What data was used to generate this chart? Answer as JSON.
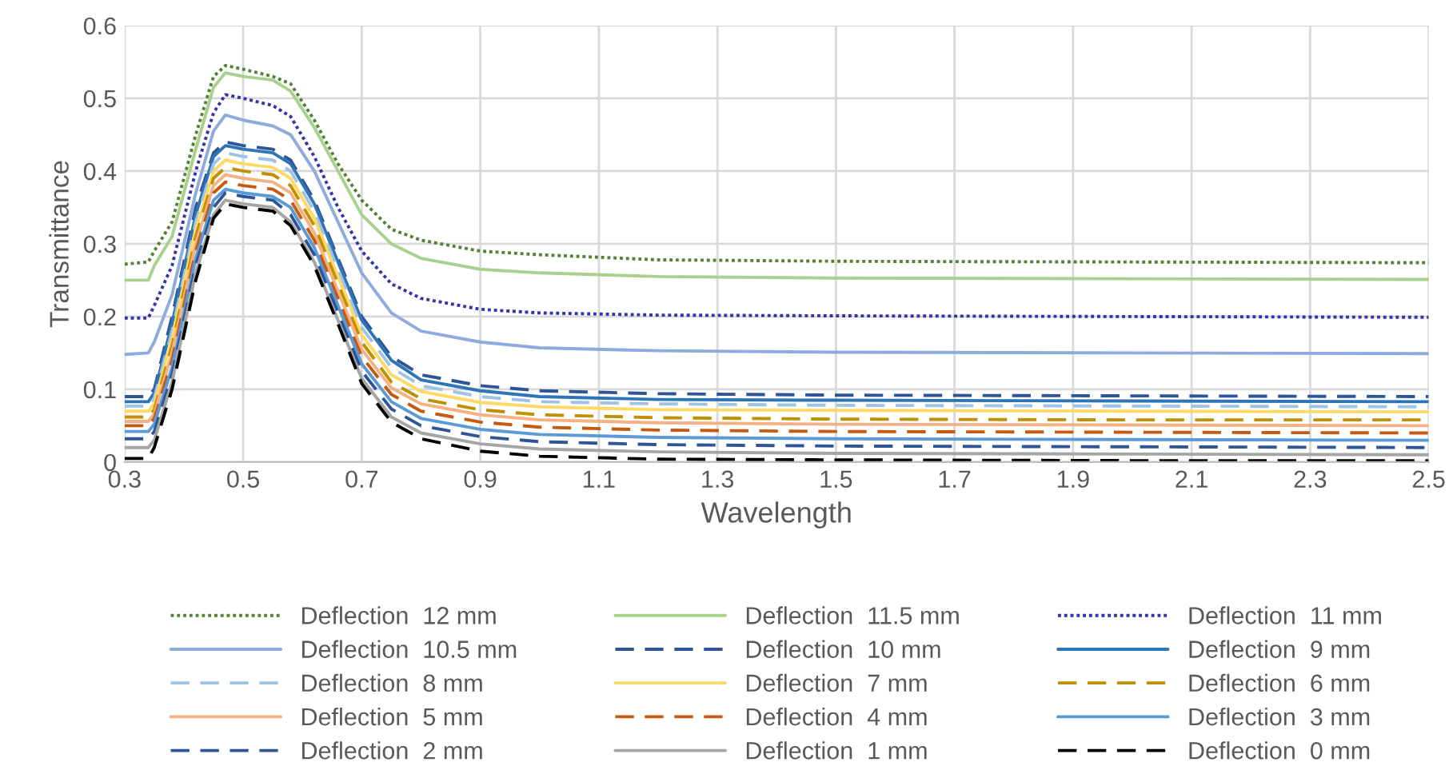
{
  "chart_data": {
    "type": "line",
    "xlabel": "Wavelength",
    "ylabel": "Transmittance",
    "x": [
      0.3,
      0.34,
      0.35,
      0.38,
      0.42,
      0.45,
      0.47,
      0.5,
      0.55,
      0.58,
      0.62,
      0.66,
      0.7,
      0.75,
      0.8,
      0.9,
      1.0,
      1.2,
      1.5,
      2.0,
      2.5
    ],
    "xlim": [
      0.3,
      2.5
    ],
    "xticks": [
      {
        "value": 0.3,
        "label": "0.3"
      },
      {
        "value": 0.5,
        "label": "0.5"
      },
      {
        "value": 0.7,
        "label": "0.7"
      },
      {
        "value": 0.9,
        "label": "0.9"
      },
      {
        "value": 1.1,
        "label": "1.1"
      },
      {
        "value": 1.3,
        "label": "1.3"
      },
      {
        "value": 1.5,
        "label": "1.5"
      },
      {
        "value": 1.7,
        "label": "1.7"
      },
      {
        "value": 1.9,
        "label": "1.9"
      },
      {
        "value": 2.1,
        "label": "2.1"
      },
      {
        "value": 2.3,
        "label": "2.3"
      },
      {
        "value": 2.5,
        "label": "2.5"
      }
    ],
    "ylim": [
      0,
      0.6
    ],
    "yticks": [
      0,
      0.1,
      0.2,
      0.3,
      0.4,
      0.5,
      0.6
    ],
    "grid": true,
    "legend": "bottom",
    "marker": "none",
    "series": [
      {
        "name": "Deflection  12 mm",
        "color": "#548235",
        "line_style": "dotted",
        "values": [
          0.272,
          0.275,
          0.29,
          0.33,
          0.45,
          0.53,
          0.545,
          0.54,
          0.53,
          0.52,
          0.47,
          0.41,
          0.36,
          0.32,
          0.305,
          0.29,
          0.285,
          0.278,
          0.276,
          0.275,
          0.274
        ]
      },
      {
        "name": "Deflection  11.5 mm",
        "color": "#a9d18e",
        "line_style": "solid",
        "values": [
          0.25,
          0.25,
          0.27,
          0.31,
          0.43,
          0.515,
          0.535,
          0.53,
          0.525,
          0.51,
          0.46,
          0.4,
          0.34,
          0.3,
          0.28,
          0.265,
          0.26,
          0.255,
          0.253,
          0.252,
          0.251
        ]
      },
      {
        "name": "Deflection  11 mm",
        "color": "#3333aa",
        "line_style": "dotted",
        "values": [
          0.198,
          0.198,
          0.215,
          0.27,
          0.4,
          0.48,
          0.505,
          0.5,
          0.49,
          0.475,
          0.42,
          0.35,
          0.29,
          0.245,
          0.225,
          0.21,
          0.205,
          0.202,
          0.201,
          0.2,
          0.199
        ]
      },
      {
        "name": "Deflection  10.5 mm",
        "color": "#8faadc",
        "line_style": "solid",
        "values": [
          0.148,
          0.15,
          0.165,
          0.23,
          0.37,
          0.455,
          0.477,
          0.47,
          0.462,
          0.45,
          0.4,
          0.33,
          0.26,
          0.205,
          0.18,
          0.165,
          0.157,
          0.153,
          0.151,
          0.15,
          0.149
        ]
      },
      {
        "name": "Deflection  10 mm",
        "color": "#2f5597",
        "line_style": "dashed",
        "values": [
          0.09,
          0.09,
          0.1,
          0.2,
          0.35,
          0.425,
          0.44,
          0.435,
          0.43,
          0.415,
          0.36,
          0.28,
          0.2,
          0.145,
          0.12,
          0.105,
          0.098,
          0.094,
          0.092,
          0.091,
          0.09
        ]
      },
      {
        "name": "Deflection  9 mm",
        "color": "#2e75b6",
        "line_style": "solid",
        "values": [
          0.083,
          0.083,
          0.095,
          0.19,
          0.34,
          0.42,
          0.435,
          0.43,
          0.425,
          0.41,
          0.355,
          0.275,
          0.195,
          0.14,
          0.113,
          0.098,
          0.09,
          0.086,
          0.085,
          0.084,
          0.083
        ]
      },
      {
        "name": "Deflection  8 mm",
        "color": "#9dc3e6",
        "line_style": "dashed",
        "values": [
          0.077,
          0.077,
          0.088,
          0.18,
          0.33,
          0.41,
          0.425,
          0.42,
          0.415,
          0.4,
          0.345,
          0.265,
          0.185,
          0.13,
          0.105,
          0.09,
          0.083,
          0.08,
          0.078,
          0.077,
          0.076
        ]
      },
      {
        "name": "Deflection  7 mm",
        "color": "#ffd966",
        "line_style": "solid",
        "values": [
          0.07,
          0.07,
          0.08,
          0.17,
          0.32,
          0.4,
          0.415,
          0.41,
          0.405,
          0.39,
          0.335,
          0.255,
          0.175,
          0.12,
          0.097,
          0.082,
          0.076,
          0.072,
          0.071,
          0.07,
          0.069
        ]
      },
      {
        "name": "Deflection  6 mm",
        "color": "#bf9000",
        "line_style": "dashed",
        "values": [
          0.062,
          0.062,
          0.072,
          0.16,
          0.31,
          0.39,
          0.405,
          0.4,
          0.395,
          0.38,
          0.325,
          0.245,
          0.165,
          0.11,
          0.087,
          0.072,
          0.065,
          0.061,
          0.059,
          0.058,
          0.058
        ]
      },
      {
        "name": "Deflection  5 mm",
        "color": "#f4b183",
        "line_style": "solid",
        "values": [
          0.056,
          0.056,
          0.066,
          0.15,
          0.3,
          0.38,
          0.395,
          0.39,
          0.385,
          0.37,
          0.315,
          0.235,
          0.155,
          0.102,
          0.08,
          0.065,
          0.058,
          0.054,
          0.052,
          0.051,
          0.05
        ]
      },
      {
        "name": "Deflection  4 mm",
        "color": "#c55a11",
        "line_style": "dashed",
        "values": [
          0.05,
          0.05,
          0.06,
          0.14,
          0.29,
          0.37,
          0.385,
          0.38,
          0.375,
          0.36,
          0.305,
          0.225,
          0.145,
          0.093,
          0.07,
          0.055,
          0.048,
          0.044,
          0.042,
          0.041,
          0.04
        ]
      },
      {
        "name": "Deflection  3 mm",
        "color": "#5b9bd5",
        "line_style": "solid",
        "values": [
          0.042,
          0.042,
          0.052,
          0.13,
          0.28,
          0.36,
          0.375,
          0.37,
          0.365,
          0.35,
          0.295,
          0.215,
          0.135,
          0.083,
          0.06,
          0.045,
          0.038,
          0.034,
          0.032,
          0.031,
          0.03
        ]
      },
      {
        "name": "Deflection  2 mm",
        "color": "#2f5597",
        "line_style": "dashed",
        "values": [
          0.032,
          0.032,
          0.042,
          0.12,
          0.27,
          0.35,
          0.37,
          0.365,
          0.36,
          0.34,
          0.285,
          0.205,
          0.125,
          0.073,
          0.05,
          0.035,
          0.028,
          0.024,
          0.022,
          0.021,
          0.02
        ]
      },
      {
        "name": "Deflection  1 mm",
        "color": "#a5a5a5",
        "line_style": "solid",
        "values": [
          0.02,
          0.02,
          0.03,
          0.11,
          0.26,
          0.34,
          0.36,
          0.355,
          0.35,
          0.33,
          0.275,
          0.195,
          0.115,
          0.062,
          0.04,
          0.025,
          0.018,
          0.014,
          0.012,
          0.011,
          0.01
        ]
      },
      {
        "name": "Deflection  0 mm",
        "color": "#000000",
        "line_style": "dashed",
        "values": [
          0.005,
          0.005,
          0.02,
          0.1,
          0.25,
          0.335,
          0.355,
          0.35,
          0.345,
          0.325,
          0.27,
          0.19,
          0.108,
          0.055,
          0.032,
          0.015,
          0.008,
          0.004,
          0.003,
          0.002,
          0.002
        ]
      }
    ]
  }
}
